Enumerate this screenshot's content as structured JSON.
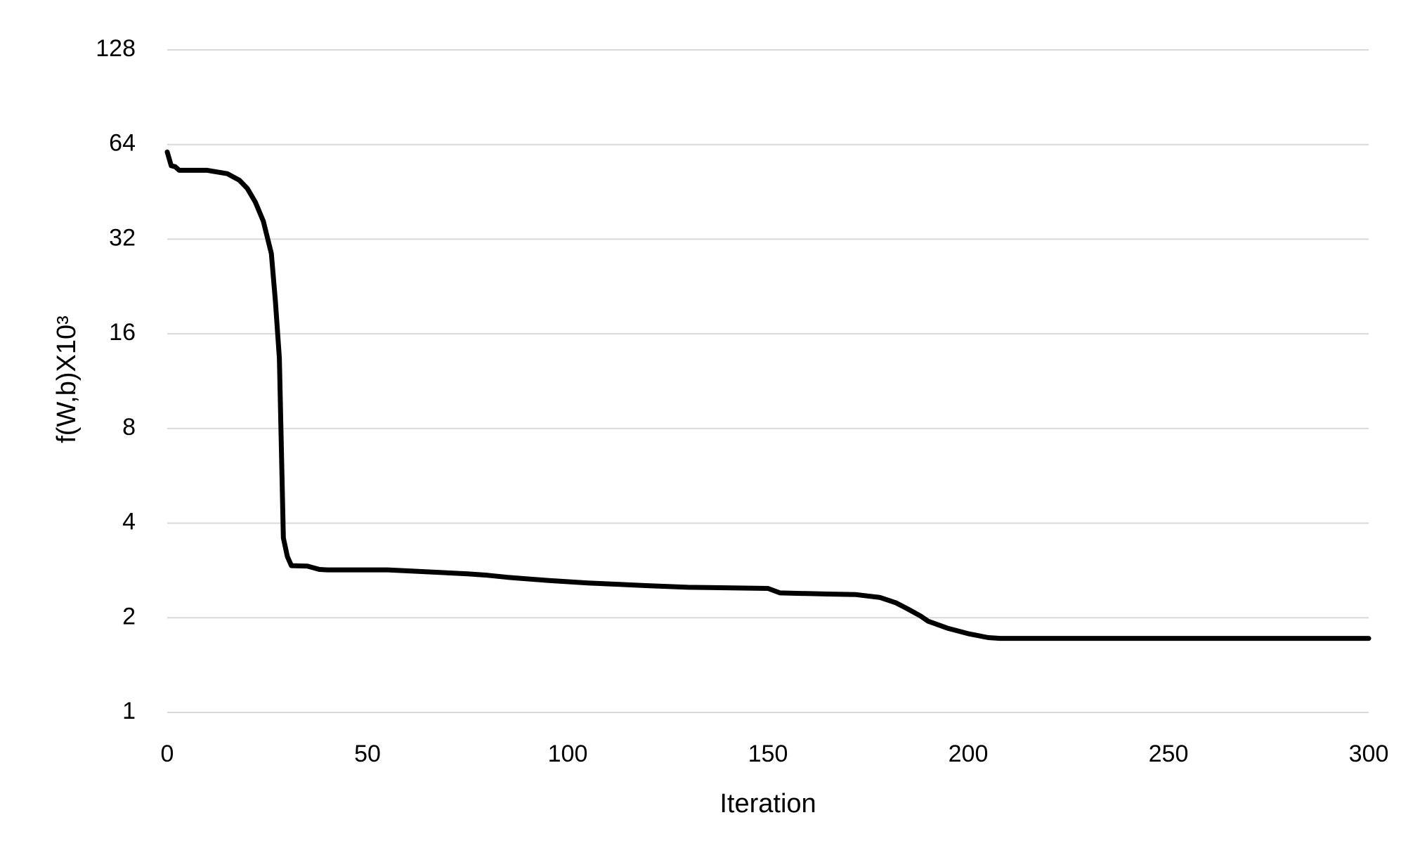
{
  "chart_data": {
    "type": "line",
    "x_label": "Iteration",
    "y_label": "f(W,b)X10³",
    "x": [
      0,
      1,
      2,
      3,
      10,
      15,
      18,
      20,
      22,
      24,
      26,
      27,
      28,
      29,
      30,
      31,
      35,
      38,
      40,
      55,
      60,
      75,
      80,
      85,
      95,
      105,
      120,
      130,
      150,
      153,
      165,
      172,
      178,
      182,
      185,
      188,
      190,
      195,
      200,
      205,
      208,
      300
    ],
    "values": [
      60.6,
      54.8,
      54.4,
      53,
      53,
      51.7,
      49.3,
      46.4,
      42,
      36.5,
      28.8,
      20.4,
      13.4,
      3.59,
      3.13,
      2.93,
      2.92,
      2.85,
      2.84,
      2.84,
      2.82,
      2.76,
      2.73,
      2.69,
      2.63,
      2.58,
      2.53,
      2.5,
      2.48,
      2.4,
      2.38,
      2.37,
      2.32,
      2.23,
      2.13,
      2.03,
      1.95,
      1.85,
      1.78,
      1.73,
      1.72,
      1.72
    ],
    "color": "#000000",
    "xlim": [
      0,
      300
    ],
    "xticks": [
      0,
      50,
      100,
      150,
      200,
      250,
      300
    ],
    "ylim": [
      1,
      128
    ],
    "yticks": [
      1,
      2,
      4,
      8,
      16,
      32,
      64,
      128
    ],
    "yscale": "log",
    "grid": true
  }
}
